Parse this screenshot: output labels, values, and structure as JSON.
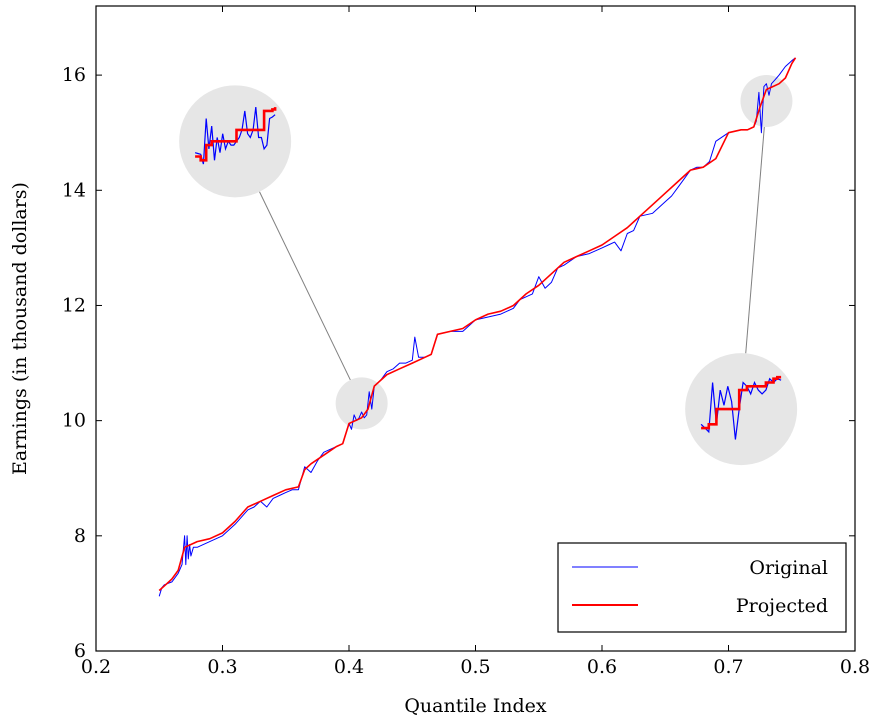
{
  "chart_data": {
    "type": "line",
    "xlabel": "Quantile Index",
    "ylabel": "Earnings (in thousand dollars)",
    "xlim": [
      0.2,
      0.8
    ],
    "ylim": [
      6,
      17.2
    ],
    "xticks": [
      "0.2",
      "0.3",
      "0.4",
      "0.5",
      "0.6",
      "0.7",
      "0.8"
    ],
    "yticks": [
      "6",
      "8",
      "10",
      "12",
      "14",
      "16"
    ],
    "grid": false,
    "legend_position": "bottom-right",
    "series": [
      {
        "name": "Original",
        "color": "#0000ff",
        "x": [
          0.25,
          0.252,
          0.254,
          0.26,
          0.265,
          0.268,
          0.27,
          0.271,
          0.272,
          0.273,
          0.274,
          0.275,
          0.277,
          0.28,
          0.29,
          0.3,
          0.31,
          0.32,
          0.325,
          0.33,
          0.335,
          0.34,
          0.345,
          0.35,
          0.355,
          0.36,
          0.365,
          0.37,
          0.375,
          0.38,
          0.385,
          0.39,
          0.395,
          0.4,
          0.402,
          0.404,
          0.406,
          0.408,
          0.41,
          0.412,
          0.414,
          0.416,
          0.418,
          0.42,
          0.425,
          0.43,
          0.435,
          0.44,
          0.445,
          0.45,
          0.452,
          0.455,
          0.46,
          0.465,
          0.47,
          0.48,
          0.49,
          0.5,
          0.51,
          0.52,
          0.525,
          0.53,
          0.535,
          0.54,
          0.545,
          0.55,
          0.555,
          0.56,
          0.565,
          0.57,
          0.58,
          0.59,
          0.6,
          0.605,
          0.61,
          0.615,
          0.62,
          0.625,
          0.63,
          0.64,
          0.65,
          0.655,
          0.66,
          0.665,
          0.67,
          0.675,
          0.68,
          0.685,
          0.69,
          0.7,
          0.71,
          0.715,
          0.72,
          0.722,
          0.724,
          0.726,
          0.728,
          0.73,
          0.732,
          0.734,
          0.736,
          0.738,
          0.74,
          0.745,
          0.75,
          0.753
        ],
        "y": [
          6.95,
          7.1,
          7.15,
          7.2,
          7.35,
          7.5,
          8.0,
          7.5,
          8.0,
          7.6,
          7.85,
          7.65,
          7.8,
          7.8,
          7.9,
          8.0,
          8.2,
          8.45,
          8.5,
          8.6,
          8.5,
          8.65,
          8.7,
          8.75,
          8.8,
          8.8,
          9.2,
          9.1,
          9.3,
          9.45,
          9.5,
          9.55,
          9.6,
          9.95,
          9.85,
          10.1,
          10.0,
          10.05,
          10.15,
          10.05,
          10.1,
          10.5,
          10.2,
          10.6,
          10.7,
          10.85,
          10.9,
          11.0,
          11.0,
          11.05,
          11.45,
          11.1,
          11.1,
          11.15,
          11.5,
          11.55,
          11.55,
          11.75,
          11.8,
          11.85,
          11.9,
          11.95,
          12.1,
          12.15,
          12.2,
          12.5,
          12.3,
          12.4,
          12.65,
          12.7,
          12.85,
          12.9,
          13.0,
          13.05,
          13.1,
          12.95,
          13.25,
          13.3,
          13.55,
          13.6,
          13.8,
          13.9,
          14.05,
          14.2,
          14.35,
          14.4,
          14.4,
          14.5,
          14.85,
          15.0,
          15.05,
          15.05,
          15.1,
          15.2,
          15.7,
          15.0,
          15.8,
          15.85,
          15.65,
          15.85,
          15.9,
          15.95,
          16.0,
          16.15,
          16.25,
          16.3
        ]
      },
      {
        "name": "Projected",
        "color": "#ff0000",
        "x": [
          0.25,
          0.255,
          0.26,
          0.265,
          0.27,
          0.275,
          0.28,
          0.29,
          0.3,
          0.31,
          0.32,
          0.33,
          0.34,
          0.35,
          0.36,
          0.365,
          0.37,
          0.38,
          0.39,
          0.395,
          0.4,
          0.41,
          0.415,
          0.42,
          0.43,
          0.44,
          0.45,
          0.46,
          0.465,
          0.47,
          0.48,
          0.49,
          0.5,
          0.51,
          0.52,
          0.53,
          0.54,
          0.55,
          0.56,
          0.57,
          0.58,
          0.59,
          0.6,
          0.61,
          0.62,
          0.63,
          0.64,
          0.65,
          0.66,
          0.67,
          0.68,
          0.69,
          0.7,
          0.71,
          0.715,
          0.72,
          0.725,
          0.73,
          0.735,
          0.74,
          0.745,
          0.75,
          0.753
        ],
        "y": [
          7.05,
          7.15,
          7.25,
          7.4,
          7.8,
          7.85,
          7.9,
          7.95,
          8.05,
          8.25,
          8.5,
          8.6,
          8.7,
          8.8,
          8.85,
          9.15,
          9.25,
          9.4,
          9.55,
          9.6,
          9.95,
          10.05,
          10.2,
          10.6,
          10.8,
          10.9,
          11.0,
          11.1,
          11.15,
          11.5,
          11.55,
          11.6,
          11.75,
          11.85,
          11.9,
          12.0,
          12.2,
          12.35,
          12.55,
          12.75,
          12.85,
          12.95,
          13.05,
          13.2,
          13.35,
          13.55,
          13.75,
          13.95,
          14.15,
          14.35,
          14.4,
          14.55,
          15.0,
          15.05,
          15.05,
          15.1,
          15.45,
          15.75,
          15.8,
          15.85,
          15.95,
          16.2,
          16.3
        ]
      }
    ],
    "annotations": [
      {
        "type": "zoom-inset",
        "source_center": [
          0.41,
          10.3
        ],
        "inset_center": [
          0.31,
          14.85
        ]
      },
      {
        "type": "zoom-inset",
        "source_center": [
          0.73,
          15.55
        ],
        "inset_center": [
          0.71,
          10.2
        ]
      }
    ]
  },
  "insets": {
    "left": {
      "original_y": [
        0.35,
        0.34,
        0.33,
        0.2,
        0.8,
        0.4,
        0.7,
        0.25,
        0.55,
        0.35,
        0.6,
        0.4,
        0.5,
        0.45,
        0.45,
        0.5,
        0.55,
        0.65,
        0.9,
        0.6,
        0.55,
        0.65,
        0.95,
        0.55,
        0.55,
        0.4,
        0.45,
        0.8,
        0.82,
        0.85
      ],
      "projected_y": [
        0.3,
        0.3,
        0.25,
        0.25,
        0.45,
        0.45,
        0.5,
        0.5,
        0.5,
        0.5,
        0.5,
        0.5,
        0.5,
        0.5,
        0.5,
        0.65,
        0.65,
        0.65,
        0.65,
        0.65,
        0.65,
        0.65,
        0.65,
        0.65,
        0.65,
        0.9,
        0.9,
        0.9,
        0.92,
        0.95
      ]
    },
    "right": {
      "original_y": [
        0.3,
        0.25,
        0.2,
        0.85,
        0.3,
        0.75,
        0.55,
        0.8,
        0.6,
        0.1,
        0.5,
        0.85,
        0.8,
        0.7,
        0.85,
        0.75,
        0.7,
        0.75,
        0.9,
        0.85,
        0.9,
        0.88
      ],
      "projected_y": [
        0.25,
        0.25,
        0.3,
        0.3,
        0.5,
        0.5,
        0.5,
        0.5,
        0.5,
        0.5,
        0.75,
        0.75,
        0.8,
        0.8,
        0.8,
        0.8,
        0.8,
        0.85,
        0.85,
        0.9,
        0.92,
        0.92
      ]
    }
  }
}
